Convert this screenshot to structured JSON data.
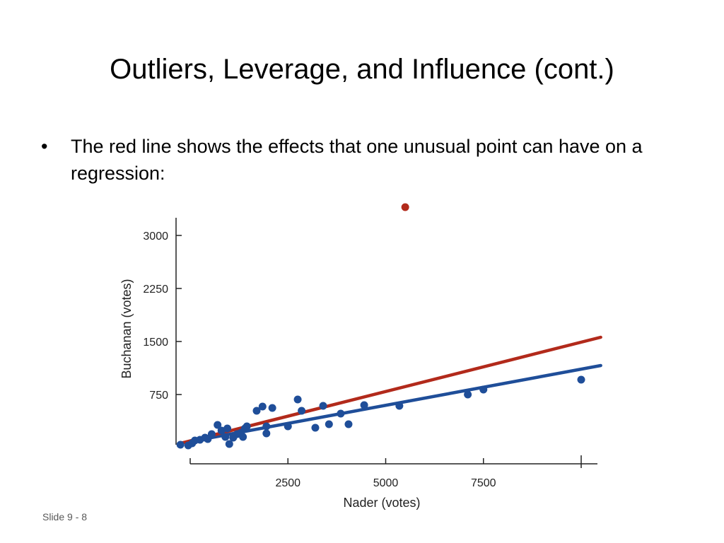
{
  "slide": {
    "title": "Outliers, Leverage, and Influence (cont.)",
    "bullet_symbol": "•",
    "bullet_text": "The red line shows the effects that one unusual point can have on a regression:",
    "footer": "Slide 9 - 8"
  },
  "chart_data": {
    "type": "scatter",
    "xlabel": "Nader (votes)",
    "ylabel": "Buchanan (votes)",
    "xlim": [
      -350,
      10500
    ],
    "ylim": [
      -100,
      3350
    ],
    "xticks": [
      2500,
      5000,
      7500
    ],
    "xtick_labels": [
      "2500",
      "5000",
      "7500"
    ],
    "yticks": [
      750,
      1500,
      2250,
      3000
    ],
    "ytick_labels": [
      "750",
      "1500",
      "2250",
      "3000"
    ],
    "grid": false,
    "points": [
      {
        "x": -250,
        "y": 40
      },
      {
        "x": -50,
        "y": 30
      },
      {
        "x": 50,
        "y": 60
      },
      {
        "x": 120,
        "y": 100
      },
      {
        "x": 250,
        "y": 110
      },
      {
        "x": 380,
        "y": 140
      },
      {
        "x": 450,
        "y": 120
      },
      {
        "x": 550,
        "y": 190
      },
      {
        "x": 700,
        "y": 320
      },
      {
        "x": 800,
        "y": 240
      },
      {
        "x": 900,
        "y": 150
      },
      {
        "x": 950,
        "y": 270
      },
      {
        "x": 1000,
        "y": 50
      },
      {
        "x": 1100,
        "y": 140
      },
      {
        "x": 1200,
        "y": 190
      },
      {
        "x": 1300,
        "y": 210
      },
      {
        "x": 1350,
        "y": 150
      },
      {
        "x": 1400,
        "y": 270
      },
      {
        "x": 1450,
        "y": 300
      },
      {
        "x": 1700,
        "y": 520
      },
      {
        "x": 1850,
        "y": 580
      },
      {
        "x": 1950,
        "y": 300
      },
      {
        "x": 1950,
        "y": 200
      },
      {
        "x": 2100,
        "y": 560
      },
      {
        "x": 2500,
        "y": 300
      },
      {
        "x": 2750,
        "y": 680
      },
      {
        "x": 2850,
        "y": 520
      },
      {
        "x": 3200,
        "y": 280
      },
      {
        "x": 3400,
        "y": 590
      },
      {
        "x": 3550,
        "y": 330
      },
      {
        "x": 3850,
        "y": 480
      },
      {
        "x": 4050,
        "y": 330
      },
      {
        "x": 4450,
        "y": 600
      },
      {
        "x": 5350,
        "y": 590
      },
      {
        "x": 7100,
        "y": 750
      },
      {
        "x": 7500,
        "y": 820
      },
      {
        "x": 10000,
        "y": 960
      }
    ],
    "outlier": {
      "x": 5500,
      "y": 3400
    },
    "series": [
      {
        "x": [
          -250,
          10500
        ],
        "y": [
          60,
          1160
        ],
        "color": "#1f4e99"
      },
      {
        "x": [
          -250,
          10500
        ],
        "y": [
          60,
          1560
        ],
        "color": "#b22a1b"
      }
    ],
    "colors": {
      "points": "#1f4e99",
      "outlier": "#b22a1b"
    }
  }
}
